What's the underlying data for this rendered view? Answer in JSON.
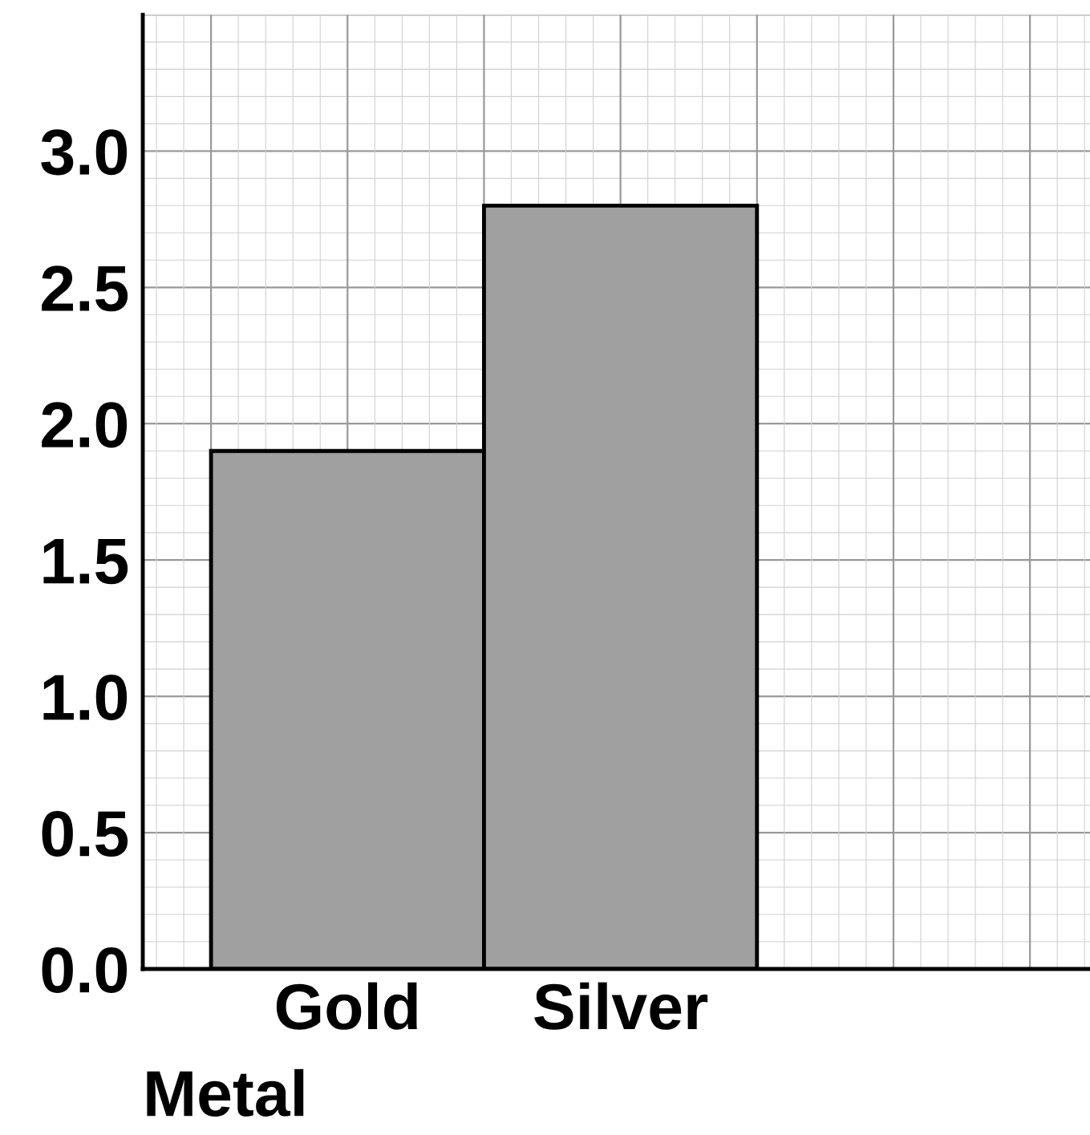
{
  "chart_data": {
    "type": "bar",
    "xlabel": "Metal",
    "categories": [
      "Gold",
      "Silver",
      null
    ],
    "values": [
      1.9,
      2.8,
      null
    ],
    "color": "#a0a0a0",
    "ylim": [
      0,
      3.5
    ],
    "yticks": [
      {
        "value": 0,
        "label": "0.0"
      },
      0.5,
      {
        "value": 1,
        "label": "1.0"
      },
      1.5,
      {
        "value": 2,
        "label": "2.0"
      },
      2.5,
      {
        "value": 3,
        "label": "3.0"
      }
    ],
    "grid": true
  }
}
